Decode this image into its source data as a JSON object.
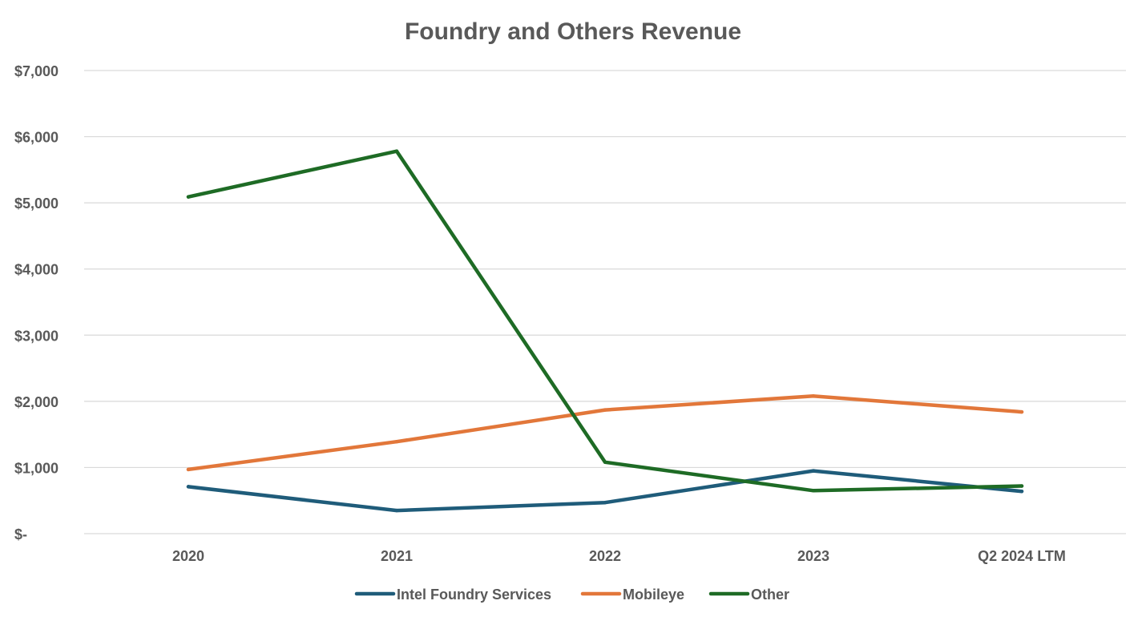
{
  "chart_data": {
    "type": "line",
    "title": "Foundry and Others Revenue",
    "xlabel": "",
    "ylabel": "",
    "categories": [
      "2020",
      "2021",
      "2022",
      "2023",
      "Q2 2024 LTM"
    ],
    "ylim": [
      0,
      7000
    ],
    "yticks": [
      {
        "value": 0,
        "label": "$-"
      },
      {
        "value": 1000,
        "label": "$1,000"
      },
      {
        "value": 2000,
        "label": "$2,000"
      },
      {
        "value": 3000,
        "label": "$3,000"
      },
      {
        "value": 4000,
        "label": "$4,000"
      },
      {
        "value": 5000,
        "label": "$5,000"
      },
      {
        "value": 6000,
        "label": "$6,000"
      },
      {
        "value": 7000,
        "label": "$7,000"
      }
    ],
    "grid": true,
    "legend_position": "bottom",
    "series": [
      {
        "name": "Intel Foundry Services",
        "color": "#1f5c7a",
        "values": [
          710,
          350,
          470,
          950,
          640
        ]
      },
      {
        "name": "Mobileye",
        "color": "#e2773a",
        "values": [
          970,
          1390,
          1870,
          2080,
          1840
        ]
      },
      {
        "name": "Other",
        "color": "#1e6b25",
        "values": [
          5090,
          5780,
          1080,
          650,
          720
        ]
      }
    ]
  }
}
